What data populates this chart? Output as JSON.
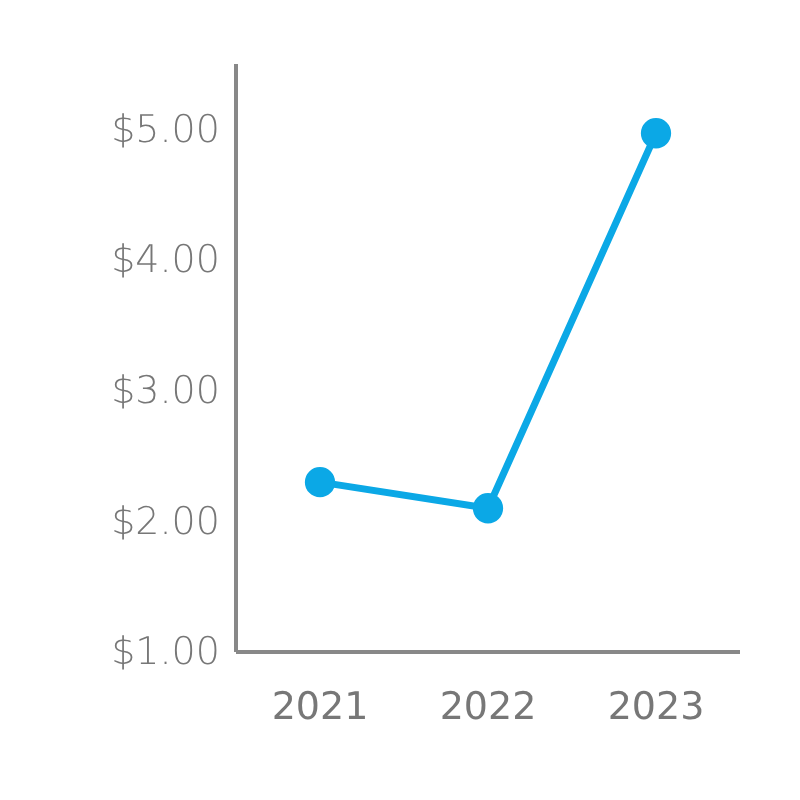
{
  "chart_data": {
    "type": "line",
    "categories": [
      "2021",
      "2022",
      "2023"
    ],
    "series": [
      {
        "color": "#0ba8e6",
        "values": [
          2.3,
          2.1,
          4.97
        ]
      }
    ],
    "ylim": [
      1,
      5.5
    ],
    "yticks": [
      {
        "value": 1,
        "label": "$1.00"
      },
      {
        "value": 2,
        "label": "$2.00"
      },
      {
        "value": 3,
        "label": "$3.00"
      },
      {
        "value": 4,
        "label": "$4.00"
      },
      {
        "value": 5,
        "label": "$5.00"
      }
    ],
    "marker": "circle",
    "line_style": "solid"
  }
}
